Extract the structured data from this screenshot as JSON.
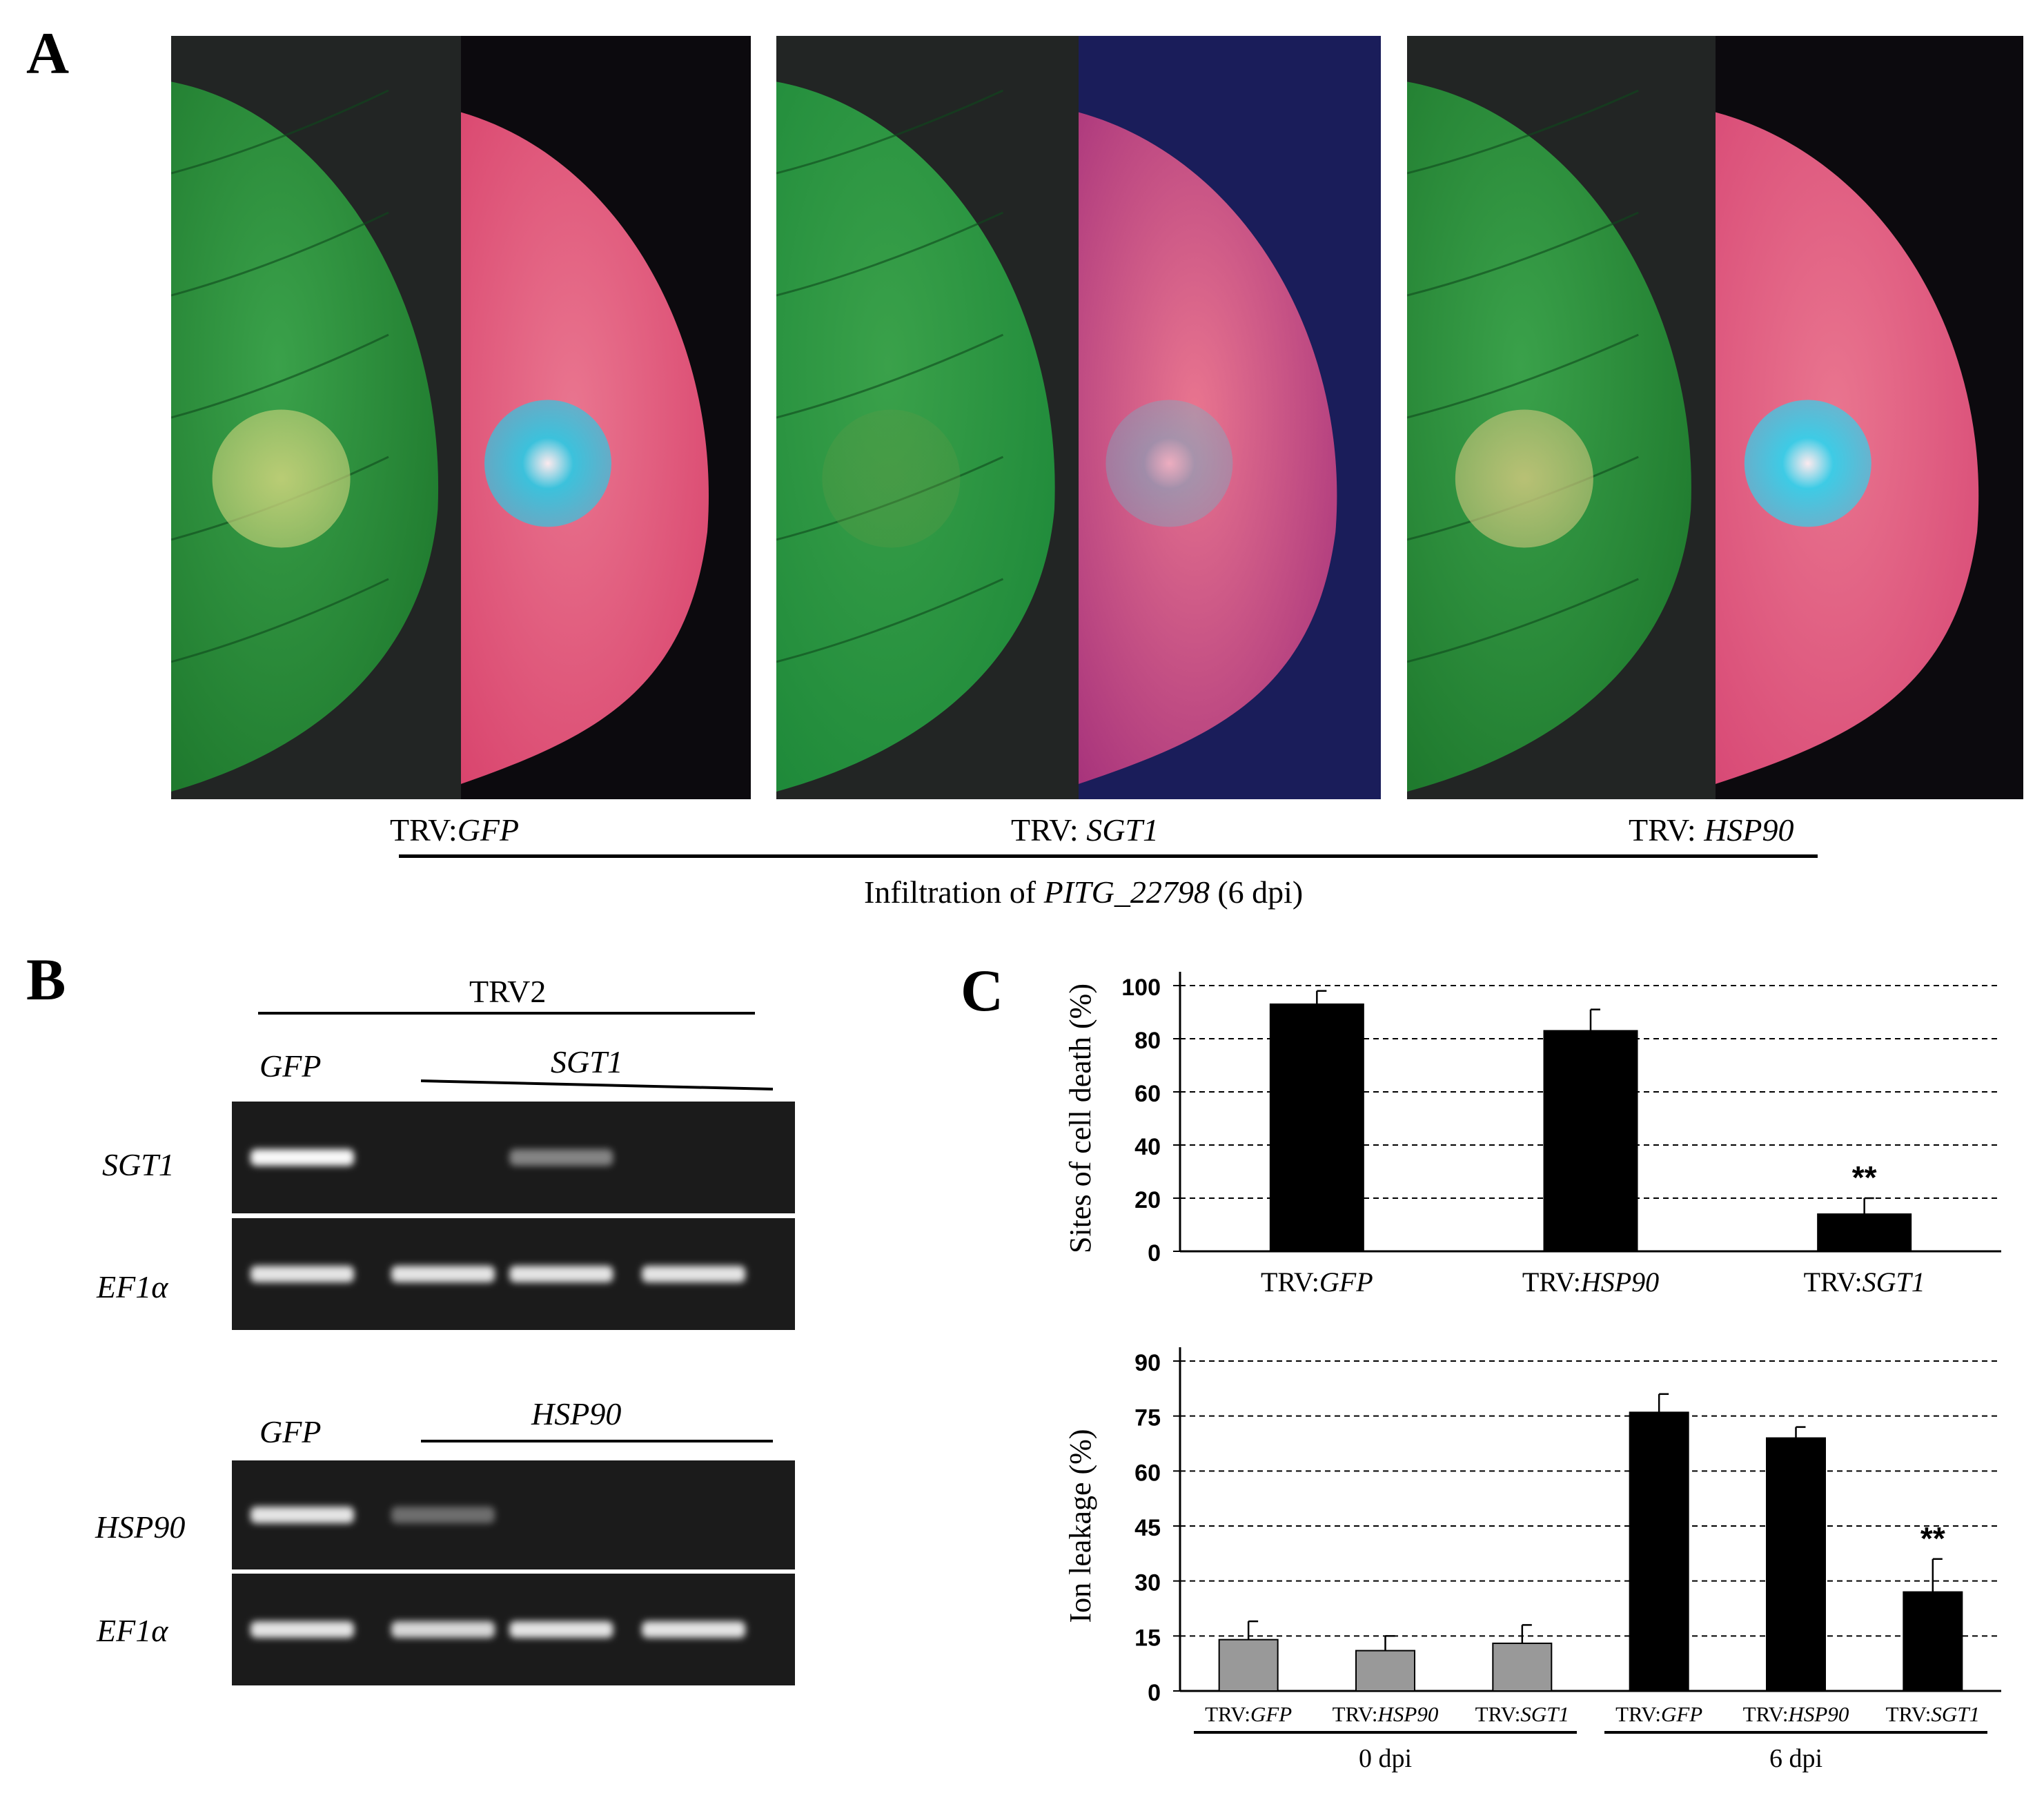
{
  "panels": {
    "a": "A",
    "b": "B",
    "c": "C"
  },
  "panel_a": {
    "photos": [
      {
        "name": "gfp",
        "leaf_color": "#1f7a2e",
        "uv_color": "#d9456e",
        "lesion_color": "#c8d27a",
        "uv_lesion_color": "#33c6e0"
      },
      {
        "name": "sgt1",
        "leaf_color": "#1f8a3a",
        "uv_color": "#a8347c",
        "lesion_color": "#5d9a45",
        "uv_lesion_color": "#6bb7c9"
      },
      {
        "name": "hsp90",
        "leaf_color": "#1f7a2e",
        "uv_color": "#d84a76",
        "lesion_color": "#c7c57a",
        "uv_lesion_color": "#35d0ea"
      }
    ],
    "labels": [
      {
        "prefix": "TRV:",
        "gene": "GFP"
      },
      {
        "prefix": "TRV: ",
        "gene": "SGT1"
      },
      {
        "prefix": "TRV: ",
        "gene": "HSP90"
      }
    ],
    "caption_prefix": "Infiltration of ",
    "caption_gene": "PITG_22798",
    "caption_suffix": " (6 dpi)"
  },
  "panel_b": {
    "group_label": "TRV2",
    "top": {
      "lane_label_control": "GFP",
      "lane_label_silenced": "SGT1",
      "rows": [
        {
          "label": "SGT1",
          "band_intensity": [
            0.95,
            0.0,
            0.35,
            0.0
          ]
        },
        {
          "label": "EF1α",
          "band_intensity": [
            0.8,
            0.8,
            0.8,
            0.8
          ]
        }
      ]
    },
    "bottom": {
      "lane_label_control": "GFP",
      "lane_label_silenced": "HSP90",
      "rows": [
        {
          "label": "HSP90",
          "band_intensity": [
            0.8,
            0.25,
            0.0,
            0.0
          ]
        },
        {
          "label": "EF1α",
          "band_intensity": [
            0.8,
            0.7,
            0.8,
            0.8
          ]
        }
      ]
    }
  },
  "chart_data": [
    {
      "type": "bar",
      "ylabel": "Sites of cell death (%)",
      "ylim": [
        0,
        100
      ],
      "yticks": [
        0,
        20,
        40,
        60,
        80,
        100
      ],
      "grid": true,
      "categories": [
        {
          "prefix": "TRV:",
          "gene": "GFP"
        },
        {
          "prefix": "TRV:",
          "gene": "HSP90"
        },
        {
          "prefix": "TRV:",
          "gene": "SGT1"
        }
      ],
      "values": [
        93,
        83,
        14
      ],
      "errors": [
        5,
        8,
        6
      ],
      "annotations": [
        "",
        "",
        "**"
      ],
      "bar_color": "#000000"
    },
    {
      "type": "bar",
      "ylabel": "Ion leakage (%)",
      "ylim": [
        0,
        90
      ],
      "yticks": [
        0,
        15,
        30,
        45,
        60,
        75,
        90
      ],
      "grid": true,
      "categories": [
        {
          "prefix": "TRV:",
          "gene": "GFP"
        },
        {
          "prefix": "TRV:",
          "gene": "HSP90"
        },
        {
          "prefix": "TRV:",
          "gene": "SGT1"
        },
        {
          "prefix": "TRV:",
          "gene": "GFP"
        },
        {
          "prefix": "TRV:",
          "gene": "HSP90"
        },
        {
          "prefix": "TRV:",
          "gene": "SGT1"
        }
      ],
      "values": [
        14,
        11,
        13,
        76,
        69,
        27
      ],
      "errors": [
        5,
        4,
        5,
        5,
        3,
        9
      ],
      "annotations": [
        "",
        "",
        "",
        "",
        "",
        "**"
      ],
      "groups": [
        {
          "label": "0 dpi",
          "color": "#999999"
        },
        {
          "label": "6 dpi",
          "color": "#000000"
        }
      ]
    }
  ]
}
